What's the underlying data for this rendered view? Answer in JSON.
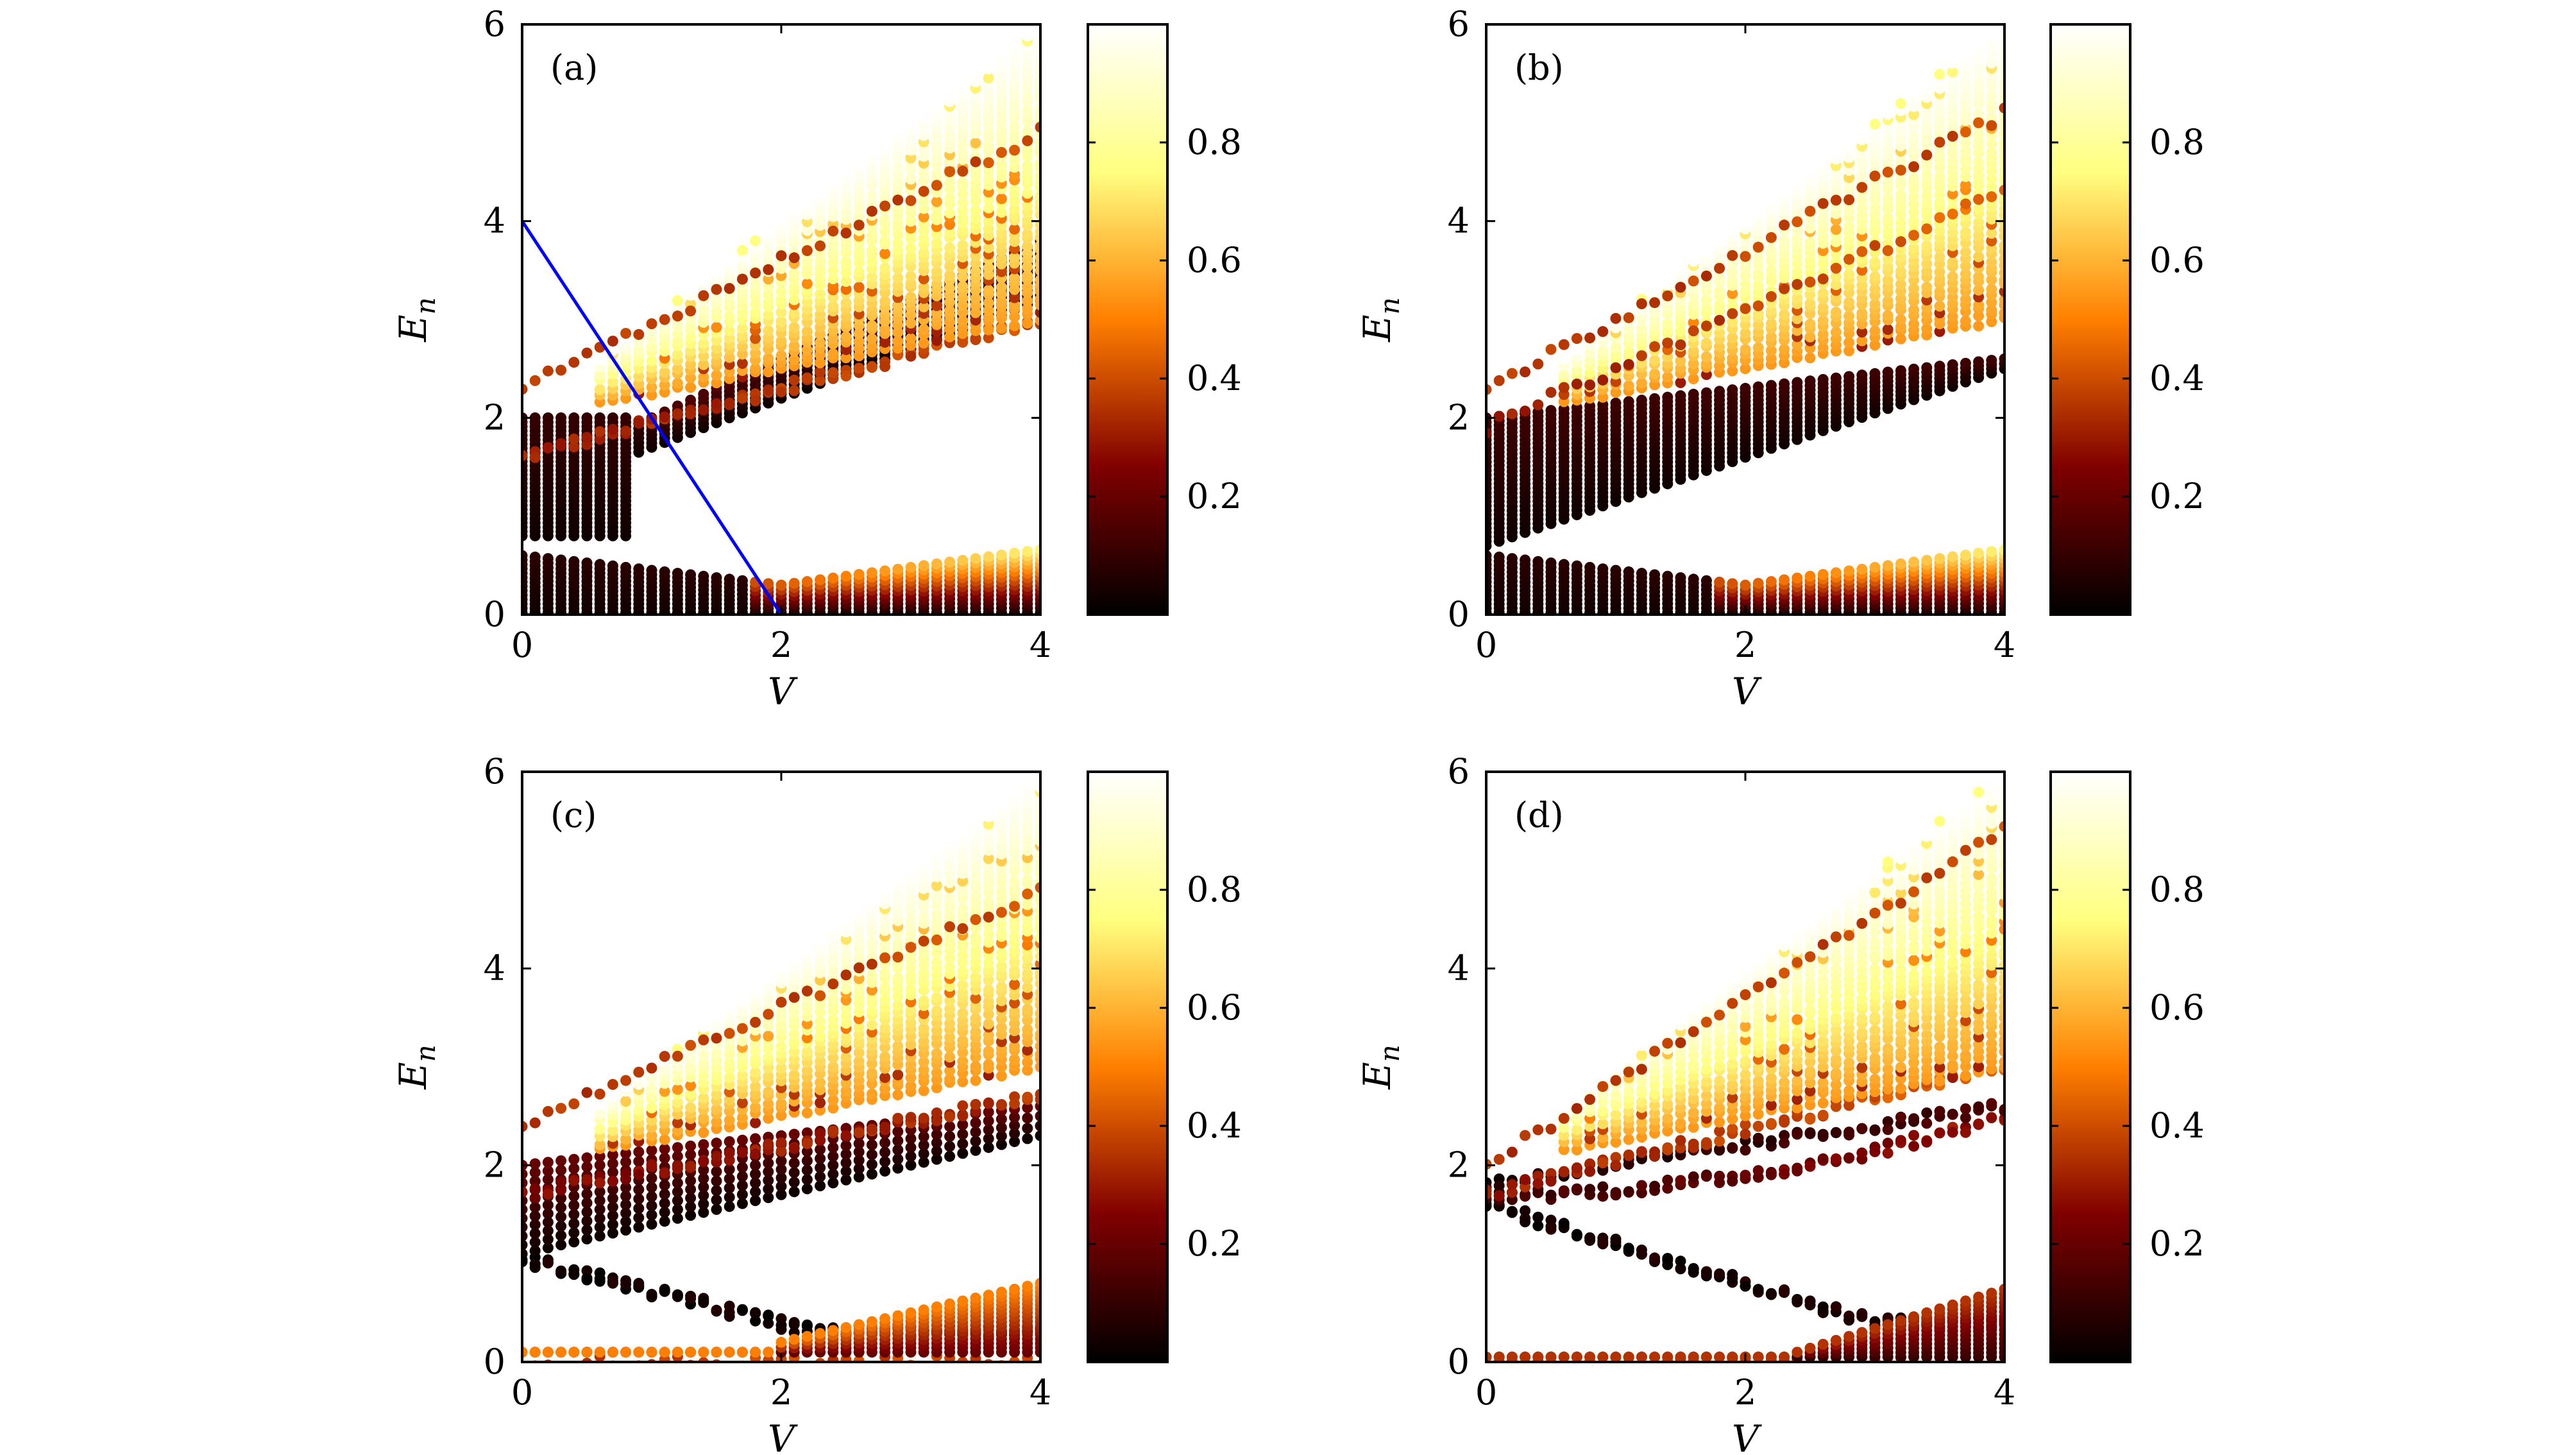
{
  "figure": {
    "panels": [
      {
        "label": "(a)",
        "variant": "a"
      },
      {
        "label": "(b)",
        "variant": "b"
      },
      {
        "label": "(c)",
        "variant": "c"
      },
      {
        "label": "(d)",
        "variant": "d"
      }
    ]
  },
  "chart_data": [
    {
      "type": "scatter",
      "panel_label": "(a)",
      "xlabel": "V",
      "ylabel": "E",
      "ylabel_subscript": "n",
      "xlim": [
        0,
        4
      ],
      "ylim": [
        0,
        6
      ],
      "xticks": [
        0,
        2,
        4
      ],
      "yticks": [
        0,
        2,
        4,
        6
      ],
      "colorbar": {
        "min": 0,
        "max": 1,
        "ticks": [
          0.2,
          0.4,
          0.6,
          0.8
        ],
        "colormap": "afmhot"
      },
      "overlay_line": {
        "color": "#0000ff",
        "points": [
          [
            0,
            4
          ],
          [
            2,
            0
          ]
        ]
      },
      "series": [
        {
          "band": "lower",
          "values": [
            [
              0,
              0.3
            ],
            [
              1,
              0.3
            ],
            [
              2,
              0.2
            ],
            [
              3,
              0.4
            ],
            [
              4,
              0.5
            ]
          ],
          "spread": [
            0.05,
            0.55
          ],
          "color_value": [
            0.05,
            0.7
          ]
        },
        {
          "band": "middle",
          "values": [
            [
              0,
              1.2
            ],
            [
              0.9,
              1.6
            ],
            [
              2,
              2.1
            ],
            [
              3,
              2.6
            ],
            [
              4,
              3.0
            ]
          ],
          "color_value": [
            0.05,
            0.6
          ]
        },
        {
          "band": "upper",
          "values": [
            [
              0,
              2.0
            ],
            [
              1,
              2.4
            ],
            [
              2,
              3.4
            ],
            [
              3,
              4.8
            ],
            [
              4,
              6.0
            ]
          ],
          "color_value": [
            0.3,
            0.98
          ]
        }
      ]
    },
    {
      "type": "scatter",
      "panel_label": "(b)",
      "xlabel": "V",
      "ylabel": "E",
      "ylabel_subscript": "n",
      "xlim": [
        0,
        4
      ],
      "ylim": [
        0,
        6
      ],
      "xticks": [
        0,
        2,
        4
      ],
      "yticks": [
        0,
        2,
        4,
        6
      ],
      "colorbar": {
        "min": 0,
        "max": 1,
        "ticks": [
          0.2,
          0.4,
          0.6,
          0.8
        ],
        "colormap": "afmhot"
      },
      "series": [
        {
          "band": "lower",
          "values": [
            [
              0,
              0.3
            ],
            [
              2,
              0.25
            ],
            [
              4,
              0.5
            ]
          ],
          "color_value": [
            0.05,
            0.7
          ]
        },
        {
          "band": "middle",
          "values": [
            [
              0,
              1.3
            ],
            [
              2,
              1.8
            ],
            [
              4,
              2.6
            ]
          ],
          "color_value": [
            0.02,
            0.2
          ]
        },
        {
          "band": "upper",
          "values": [
            [
              0,
              2.0
            ],
            [
              2,
              3.4
            ],
            [
              4,
              6.0
            ]
          ],
          "color_value": [
            0.3,
            0.98
          ]
        }
      ]
    },
    {
      "type": "scatter",
      "panel_label": "(c)",
      "xlabel": "V",
      "ylabel": "E",
      "ylabel_subscript": "n",
      "xlim": [
        0,
        4
      ],
      "ylim": [
        0,
        6
      ],
      "xticks": [
        0,
        2,
        4
      ],
      "yticks": [
        0,
        2,
        4,
        6
      ],
      "colorbar": {
        "min": 0,
        "max": 1,
        "ticks": [
          0.2,
          0.4,
          0.6,
          0.8
        ],
        "colormap": "afmhot"
      },
      "series": [
        {
          "band": "zero",
          "values": [
            [
              0,
              0
            ],
            [
              4,
              0
            ]
          ],
          "color_value": [
            0.3,
            0.45
          ]
        },
        {
          "band": "lower",
          "values": [
            [
              0,
              1.05
            ],
            [
              2,
              0.4
            ],
            [
              4,
              0.4
            ]
          ],
          "color_value": [
            0.02,
            0.5
          ]
        },
        {
          "band": "middle",
          "values": [
            [
              0,
              1.5
            ],
            [
              2,
              1.9
            ],
            [
              4,
              2.6
            ]
          ],
          "color_value": [
            0.05,
            0.35
          ]
        },
        {
          "band": "upper",
          "values": [
            [
              0,
              2.0
            ],
            [
              2,
              3.4
            ],
            [
              4,
              6.0
            ]
          ],
          "color_value": [
            0.3,
            0.98
          ]
        }
      ]
    },
    {
      "type": "scatter",
      "panel_label": "(d)",
      "xlabel": "V",
      "ylabel": "E",
      "ylabel_subscript": "n",
      "xlim": [
        0,
        4
      ],
      "ylim": [
        0,
        6
      ],
      "xticks": [
        0,
        2,
        4
      ],
      "yticks": [
        0,
        2,
        4,
        6
      ],
      "colorbar": {
        "min": 0,
        "max": 1,
        "ticks": [
          0.2,
          0.4,
          0.6,
          0.8
        ],
        "colormap": "afmhot"
      },
      "series": [
        {
          "band": "zero",
          "values": [
            [
              0,
              0
            ],
            [
              4,
              0
            ]
          ],
          "color_value": [
            0.3,
            0.45
          ]
        },
        {
          "band": "lower",
          "values": [
            [
              0,
              1.6
            ],
            [
              2,
              0.6
            ],
            [
              4,
              0.35
            ]
          ],
          "color_value": [
            0.02,
            0.45
          ]
        },
        {
          "band": "middle",
          "values": [
            [
              0,
              1.7
            ],
            [
              2,
              1.9
            ],
            [
              4,
              2.6
            ]
          ],
          "color_value": [
            0.02,
            0.45
          ]
        },
        {
          "band": "upper",
          "values": [
            [
              0,
              1.8
            ],
            [
              2,
              3.5
            ],
            [
              4,
              6.0
            ]
          ],
          "color_value": [
            0.3,
            0.98
          ]
        }
      ]
    }
  ]
}
